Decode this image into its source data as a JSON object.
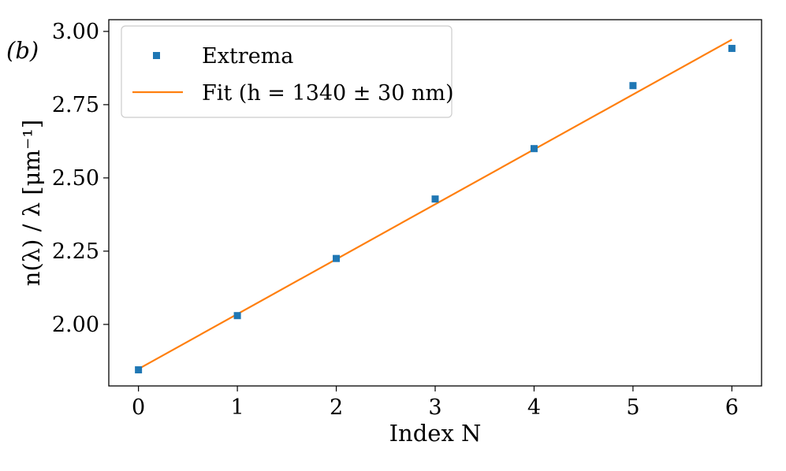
{
  "chart_data": {
    "type": "scatter",
    "panel_label": "(b)",
    "xlabel": "Index N",
    "ylabel": "n(λ) / λ  [μm⁻¹]",
    "xlim": [
      -0.3,
      6.3
    ],
    "ylim": [
      1.79,
      3.04
    ],
    "xticks": [
      0,
      1,
      2,
      3,
      4,
      5,
      6
    ],
    "xtick_labels": [
      "0",
      "1",
      "2",
      "3",
      "4",
      "5",
      "6"
    ],
    "yticks": [
      2.0,
      2.25,
      2.5,
      2.75,
      3.0
    ],
    "ytick_labels": [
      "2.00",
      "2.25",
      "2.50",
      "2.75",
      "3.00"
    ],
    "grid": false,
    "legend_position": "top-left",
    "series": [
      {
        "name": "Extrema",
        "kind": "markers",
        "marker": "square",
        "color": "#1f77b4",
        "x": [
          0,
          1,
          2,
          3,
          4,
          5,
          6
        ],
        "y": [
          1.845,
          2.03,
          2.225,
          2.428,
          2.6,
          2.815,
          2.942
        ]
      },
      {
        "name": "Fit (h = 1340 ± 30 nm)",
        "kind": "line",
        "color": "#ff7f0e",
        "x": [
          0,
          6
        ],
        "y": [
          1.848,
          2.972
        ]
      }
    ]
  }
}
